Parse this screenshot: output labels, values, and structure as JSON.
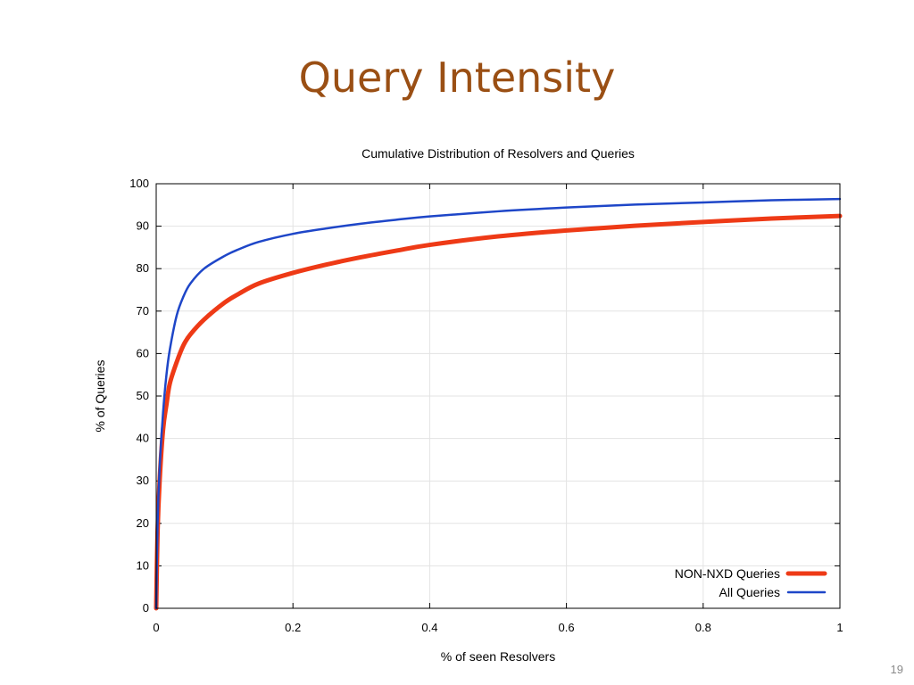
{
  "slide": {
    "title": "Query Intensity",
    "page_number": "19"
  },
  "chart_data": {
    "type": "line",
    "title": "Cumulative Distribution of Resolvers and Queries",
    "xlabel": "% of seen Resolvers",
    "ylabel": "% of Queries",
    "xlim": [
      0,
      1
    ],
    "ylim": [
      0,
      100
    ],
    "x_ticks": [
      "0",
      "0.2",
      "0.4",
      "0.6",
      "0.8",
      "1"
    ],
    "y_ticks": [
      "0",
      "10",
      "20",
      "30",
      "40",
      "50",
      "60",
      "70",
      "80",
      "90",
      "100"
    ],
    "grid": true,
    "legend_position": "bottom-right",
    "series": [
      {
        "name": "NON-NXD Queries",
        "color": "#ee3a16",
        "points": [
          [
            0,
            0
          ],
          [
            0.002,
            18
          ],
          [
            0.005,
            30
          ],
          [
            0.01,
            42
          ],
          [
            0.015,
            48
          ],
          [
            0.02,
            53
          ],
          [
            0.03,
            58
          ],
          [
            0.04,
            62
          ],
          [
            0.05,
            64.5
          ],
          [
            0.07,
            68
          ],
          [
            0.1,
            72
          ],
          [
            0.12,
            74
          ],
          [
            0.15,
            76.5
          ],
          [
            0.2,
            79
          ],
          [
            0.25,
            81
          ],
          [
            0.3,
            82.7
          ],
          [
            0.35,
            84.2
          ],
          [
            0.4,
            85.6
          ],
          [
            0.5,
            87.6
          ],
          [
            0.6,
            89
          ],
          [
            0.7,
            90.1
          ],
          [
            0.8,
            91
          ],
          [
            0.9,
            91.8
          ],
          [
            1.0,
            92.4
          ]
        ]
      },
      {
        "name": "All Queries",
        "color": "#1e46c8",
        "points": [
          [
            0,
            0
          ],
          [
            0.002,
            20
          ],
          [
            0.005,
            33
          ],
          [
            0.01,
            46
          ],
          [
            0.015,
            55
          ],
          [
            0.02,
            61
          ],
          [
            0.03,
            69
          ],
          [
            0.04,
            73.5
          ],
          [
            0.05,
            76.5
          ],
          [
            0.07,
            80
          ],
          [
            0.1,
            83
          ],
          [
            0.12,
            84.5
          ],
          [
            0.15,
            86.3
          ],
          [
            0.2,
            88.2
          ],
          [
            0.25,
            89.5
          ],
          [
            0.3,
            90.6
          ],
          [
            0.35,
            91.5
          ],
          [
            0.4,
            92.3
          ],
          [
            0.5,
            93.5
          ],
          [
            0.6,
            94.4
          ],
          [
            0.7,
            95.1
          ],
          [
            0.8,
            95.6
          ],
          [
            0.9,
            96.1
          ],
          [
            1.0,
            96.4
          ]
        ]
      }
    ]
  }
}
